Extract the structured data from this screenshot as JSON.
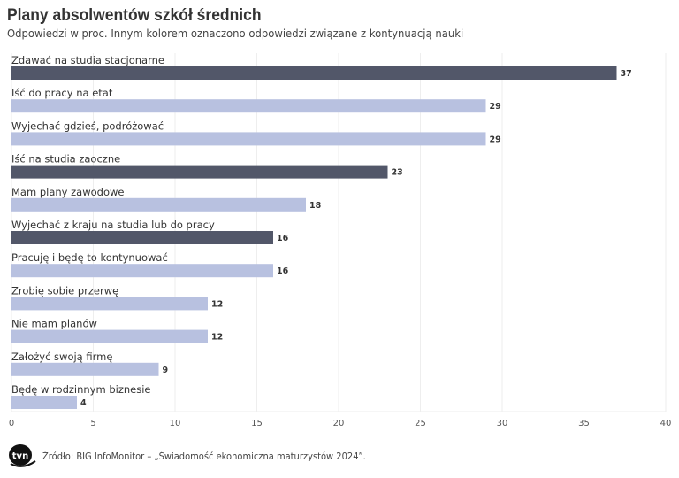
{
  "chart_data": {
    "type": "bar",
    "orientation": "horizontal",
    "title": "Plany absolwentów szkół średnich",
    "subtitle": "Odpowiedzi w proc. Innym kolorem oznaczono odpowiedzi związane z kontynuacją nauki",
    "categories": [
      "Zdawać na studia stacjonarne",
      "Iść do pracy na etat",
      "Wyjechać gdzieś, podróżować",
      "Iść na studia zaoczne",
      "Mam plany zawodowe",
      "Wyjechać z kraju na studia lub do pracy",
      "Pracuję i będę to kontynuować",
      "Zrobię sobie przerwę",
      "Nie mam planów",
      "Założyć swoją firmę",
      "Będę w rodzinnym biznesie"
    ],
    "values": [
      37,
      29,
      29,
      23,
      18,
      16,
      16,
      12,
      12,
      9,
      4
    ],
    "education_related": [
      true,
      false,
      false,
      true,
      false,
      true,
      false,
      false,
      false,
      false,
      false
    ],
    "xlim": [
      0,
      40
    ],
    "xticks": [
      0,
      5,
      10,
      15,
      20,
      25,
      30,
      35,
      40
    ],
    "grid": true,
    "colors": {
      "education": "#525769",
      "other": "#b8c1e0"
    }
  },
  "source": "Źródło: BIG InfoMonitor – „Świadomość ekonomiczna maturzystów 2024”.",
  "logo_text": "tvn24"
}
